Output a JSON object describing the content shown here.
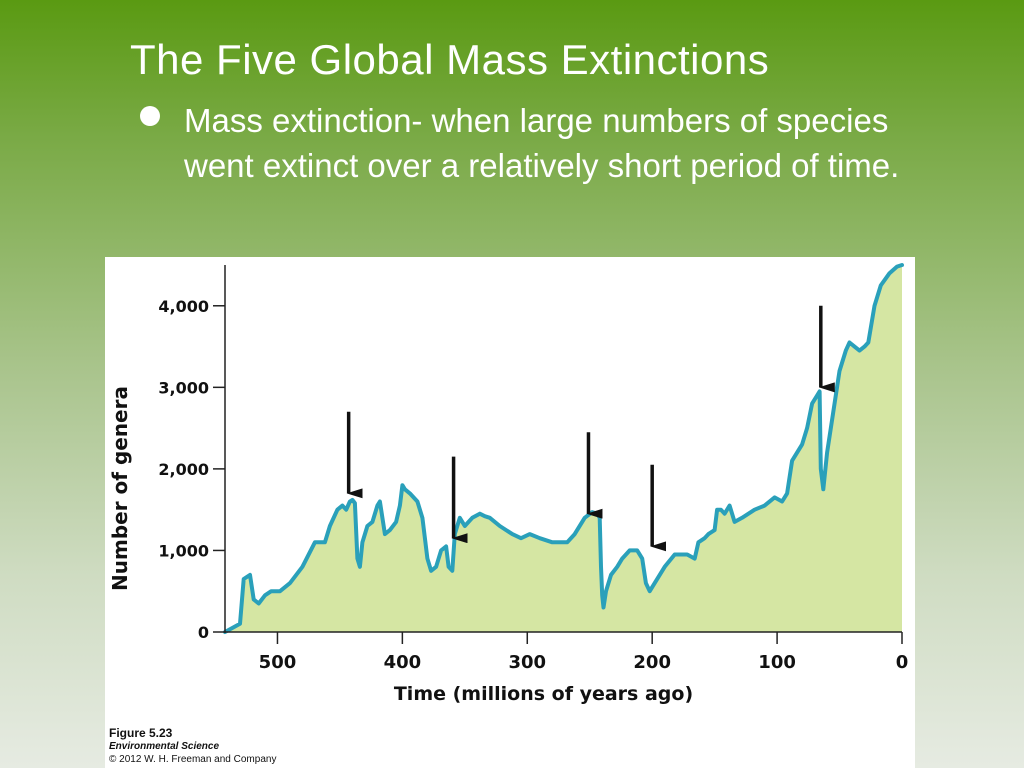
{
  "slide": {
    "title": "The Five Global Mass Extinctions",
    "bullet": "Mass extinction- when large numbers of species went extinct over a relatively short period of time."
  },
  "caption": {
    "figure": "Figure 5.23",
    "book": "Environmental Science",
    "copyright": "© 2012 W. H. Freeman and Company"
  },
  "chart_data": {
    "type": "area",
    "title": "",
    "xlabel": "Time (millions of years ago)",
    "ylabel": "Number of genera",
    "x_reversed": true,
    "xlim": [
      542,
      0
    ],
    "ylim": [
      0,
      4500
    ],
    "x_ticks": [
      {
        "value": 500,
        "label": "500"
      },
      {
        "value": 400,
        "label": "400"
      },
      {
        "value": 300,
        "label": "300"
      },
      {
        "value": 200,
        "label": "200"
      },
      {
        "value": 100,
        "label": "100"
      },
      {
        "value": 0,
        "label": "0"
      }
    ],
    "y_ticks": [
      {
        "value": 0,
        "label": "0"
      },
      {
        "value": 1000,
        "label": "1,000"
      },
      {
        "value": 2000,
        "label": "2,000"
      },
      {
        "value": 3000,
        "label": "3,000"
      },
      {
        "value": 4000,
        "label": "4,000"
      }
    ],
    "series": [
      {
        "points": [
          [
            542,
            0
          ],
          [
            530,
            100
          ],
          [
            527,
            650
          ],
          [
            522,
            700
          ],
          [
            519,
            400
          ],
          [
            515,
            350
          ],
          [
            510,
            450
          ],
          [
            505,
            500
          ],
          [
            498,
            500
          ],
          [
            490,
            600
          ],
          [
            480,
            800
          ],
          [
            470,
            1100
          ],
          [
            462,
            1100
          ],
          [
            458,
            1300
          ],
          [
            452,
            1500
          ],
          [
            448,
            1550
          ],
          [
            445,
            1500
          ],
          [
            442,
            1600
          ],
          [
            440,
            1620
          ],
          [
            438,
            1580
          ],
          [
            436,
            900
          ],
          [
            434,
            800
          ],
          [
            432,
            1100
          ],
          [
            428,
            1300
          ],
          [
            424,
            1350
          ],
          [
            420,
            1550
          ],
          [
            418,
            1600
          ],
          [
            416,
            1400
          ],
          [
            414,
            1200
          ],
          [
            410,
            1250
          ],
          [
            405,
            1350
          ],
          [
            402,
            1550
          ],
          [
            400,
            1800
          ],
          [
            398,
            1750
          ],
          [
            394,
            1700
          ],
          [
            388,
            1600
          ],
          [
            384,
            1400
          ],
          [
            380,
            900
          ],
          [
            377,
            750
          ],
          [
            373,
            800
          ],
          [
            369,
            1000
          ],
          [
            365,
            1050
          ],
          [
            363,
            800
          ],
          [
            360,
            750
          ],
          [
            358,
            1200
          ],
          [
            354,
            1400
          ],
          [
            350,
            1300
          ],
          [
            344,
            1400
          ],
          [
            338,
            1450
          ],
          [
            334,
            1420
          ],
          [
            330,
            1400
          ],
          [
            322,
            1300
          ],
          [
            312,
            1200
          ],
          [
            305,
            1150
          ],
          [
            298,
            1200
          ],
          [
            290,
            1150
          ],
          [
            280,
            1100
          ],
          [
            268,
            1100
          ],
          [
            262,
            1200
          ],
          [
            254,
            1400
          ],
          [
            248,
            1470
          ],
          [
            244,
            1450
          ],
          [
            242,
            1400
          ],
          [
            241,
            800
          ],
          [
            240,
            450
          ],
          [
            239,
            300
          ],
          [
            237,
            500
          ],
          [
            233,
            700
          ],
          [
            228,
            800
          ],
          [
            224,
            900
          ],
          [
            218,
            1000
          ],
          [
            212,
            1000
          ],
          [
            208,
            900
          ],
          [
            205,
            600
          ],
          [
            202,
            500
          ],
          [
            198,
            600
          ],
          [
            190,
            800
          ],
          [
            182,
            950
          ],
          [
            172,
            950
          ],
          [
            166,
            900
          ],
          [
            163,
            1100
          ],
          [
            158,
            1150
          ],
          [
            155,
            1200
          ],
          [
            150,
            1250
          ],
          [
            148,
            1500
          ],
          [
            145,
            1500
          ],
          [
            142,
            1450
          ],
          [
            138,
            1550
          ],
          [
            134,
            1350
          ],
          [
            128,
            1400
          ],
          [
            118,
            1500
          ],
          [
            110,
            1550
          ],
          [
            102,
            1650
          ],
          [
            96,
            1600
          ],
          [
            92,
            1700
          ],
          [
            88,
            2100
          ],
          [
            84,
            2200
          ],
          [
            80,
            2300
          ],
          [
            76,
            2500
          ],
          [
            72,
            2800
          ],
          [
            68,
            2900
          ],
          [
            66,
            2950
          ],
          [
            65,
            2000
          ],
          [
            63,
            1750
          ],
          [
            60,
            2200
          ],
          [
            55,
            2700
          ],
          [
            50,
            3200
          ],
          [
            45,
            3450
          ],
          [
            42,
            3550
          ],
          [
            38,
            3500
          ],
          [
            34,
            3450
          ],
          [
            30,
            3500
          ],
          [
            27,
            3550
          ],
          [
            22,
            4000
          ],
          [
            17,
            4250
          ],
          [
            10,
            4400
          ],
          [
            4,
            4480
          ],
          [
            0,
            4500
          ]
        ]
      }
    ],
    "extinction_arrows": [
      {
        "x": 443,
        "from": 2700,
        "to": 1700
      },
      {
        "x": 359,
        "from": 2150,
        "to": 1150
      },
      {
        "x": 251,
        "from": 2450,
        "to": 1450
      },
      {
        "x": 200,
        "from": 2050,
        "to": 1050
      },
      {
        "x": 65,
        "from": 4000,
        "to": 3000
      }
    ],
    "colors": {
      "fill": "#d5e6a3",
      "line": "#2aa0ba",
      "axis": "#222222",
      "arrow": "#111111"
    },
    "grid": false,
    "legend": "none"
  }
}
